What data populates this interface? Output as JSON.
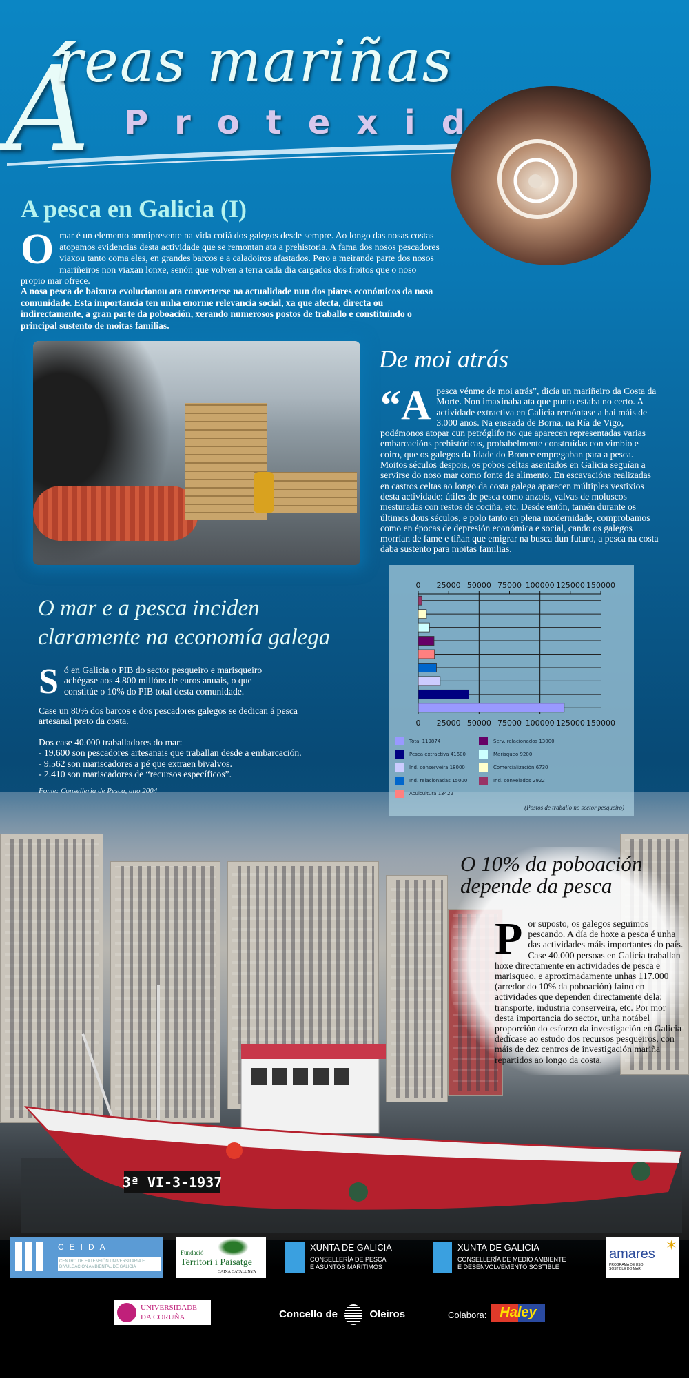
{
  "title": {
    "line1_initial": "Á",
    "line1_rest": "reas mariñas",
    "line2": "Protexidas"
  },
  "section1": {
    "heading": "A pesca en Galicia (I)",
    "drop": "O",
    "p1": "mar é un elemento omnipresente na vida cotiá dos galegos desde sempre. Ao longo das nosas costas atopamos evidencias desta actividade que se remontan ata a prehistoria. A fama dos nosos pescadores viaxou tanto coma eles, en grandes barcos e a caladoiros afastados. Pero a meirande parte dos nosos mariñeiros non viaxan lonxe, senón que volven a terra cada día cargados dos froitos que o noso propio mar ofrece.",
    "p2": "A nosa pesca de baixura evolucionou ata converterse na actualidade nun dos piares económicos da nosa comunidade. Esta importancia ten unha enorme relevancia social, xa que afecta, directa ou indirectamente, a gran parte da poboación, xerando numerosos postos de traballo e constituíndo o principal sustento de moitas familias."
  },
  "section2": {
    "heading": "De moi atrás",
    "drop": "“A",
    "text": "pesca vénme de moi atrás”, dicía un mariñeiro da Costa da Morte. Non imaxinaba ata que punto estaba no certo. A actividade extractiva en Galicia remóntase a hai máis de 3.000 anos. Na enseada de Borna, na Ría de Vigo, podémonos atopar cun petróglifo no que aparecen representadas varias embarcacións prehistóricas, probabelmente construídas con vimbio e coiro, que os galegos da Idade do Bronce empregaban para a pesca. Moitos séculos despois, os pobos celtas asentados en Galicia seguían a servirse do noso mar como fonte de alimento. En escavacións realizadas en castros celtas ao longo da costa galega aparecen múltiples vestixios desta actividade: útiles de pesca como anzois, valvas de moluscos mesturadas con restos de cociña, etc. Desde entón, tamén durante os últimos dous séculos, e polo tanto en plena modernidade, comprobamos como en épocas de depresión económica e social, cando os galegos morrían de fame e tiñan que emigrar na busca dun futuro, a pesca na costa daba sustento para moitas familias."
  },
  "section3": {
    "heading_line1": "O mar e a pesca inciden",
    "heading_line2": "claramente na economía galega",
    "drop": "S",
    "p1": "ó en Galicia o PIB do sector pesqueiro e marisqueiro achégase aos 4.800 millóns de euros anuais, o que constitúe o 10% do PIB total desta comunidade.",
    "p2": "Case un 80% dos barcos e dos pescadores galegos se dedican á pesca artesanal preto da costa.",
    "p3_lines": [
      "Dos case 40.000 traballadores do mar:",
      "- 19.600 son pescadores artesanais que traballan desde a embarcación.",
      "- 9.562 son mariscadores a pé que extraen bivalvos.",
      "- 2.410 son mariscadores de “recursos específicos”."
    ],
    "source": "Fonte: Conselleria de Pesca, ano 2004"
  },
  "chart_data": {
    "type": "bar",
    "orientation": "horizontal",
    "xlim": [
      0,
      150000
    ],
    "ticks": [
      "0",
      "25000",
      "50000",
      "75000",
      "100000",
      "125000",
      "150000"
    ],
    "grid": true,
    "categories": [
      "Total",
      "Pesca extractiva",
      "Ind. conserveira",
      "Ind. relacionadas",
      "Acuicultura",
      "Serv. relacionados",
      "Marisqueo",
      "Comercialización",
      "Ind. conxelados"
    ],
    "values": [
      119874,
      41600,
      18000,
      15000,
      13422,
      13000,
      9200,
      6730,
      2922
    ],
    "colors": [
      "#9999ff",
      "#000080",
      "#ccccff",
      "#0066cc",
      "#ff8080",
      "#660066",
      "#ccffff",
      "#ffffcc",
      "#993366"
    ],
    "legend": [
      "Total 119874",
      "Pesca extractiva  41600",
      "Ind. conserveira  18000",
      "Ind. relacionadas  15000",
      "Acuicultura  13422",
      "Serv. relacionados 13000",
      "Marisqueo  9200",
      "Comercialización  6730",
      "Ind. conxelados  2922"
    ],
    "note": "(Postos de traballo no sector pesqueiro)"
  },
  "section4": {
    "heading_line1": "O 10% da poboación",
    "heading_line2": "depende da pesca",
    "drop": "P",
    "text": "or suposto, os galegos seguimos pescando. A día de hoxe a pesca é unha das actividades máis importantes do país. Case 40.000 persoas en Galicia traballan hoxe directamente en actividades de pesca e marisqueo, e aproximadamente unhas 117.000 (arredor do 10% da poboación) faino en actividades que dependen directamente dela: transporte, industria conserveira, etc. Por mor desta importancia do sector, unha notábel proporción do esforzo da investigación en Galicia dedícase ao estudo dos recursos pesqueiros, con máis de dez centros de investigación mariña repartidos ao longo da costa."
  },
  "boat": {
    "registration": "3ª VI-3-1937"
  },
  "logos": {
    "ceida": {
      "name": "CEIDA",
      "sub": "CENTRO DE EXTENSIÓN UNIVERSITARIA E DIVULGACIÓN AMBIENTAL DE GALICIA"
    },
    "fundacio": {
      "l1": "Fundació",
      "l2": "Territori i Paisatge",
      "l3": "CAIXA CATALUNYA"
    },
    "xunta1": {
      "name": "XUNTA DE GALICIA",
      "l1": "CONSELLERÍA DE PESCA",
      "l2": "E ASUNTOS MARÍTIMOS"
    },
    "xunta2": {
      "name": "XUNTA DE GALICIA",
      "l1": "CONSELLERÍA DE MEDIO AMBIENTE",
      "l2": "E DESENVOLVEMENTO SOSTIBLE"
    },
    "amares": {
      "name": "amares",
      "sub": "PROGRAMA DE USO SOSTIBLE DO MAR"
    },
    "udc": {
      "l1": "UNIVERSIDADE",
      "l2": "DA CORUÑA"
    },
    "oleiros": {
      "l1": "Concello de",
      "l2": "Oleiros"
    },
    "colabora": "Colabora:",
    "haley": "Haley"
  },
  "colors": {
    "accent_text": "#b6f3ef",
    "title_purple": "#d7c8ec",
    "bg_blue": "#0a78b4"
  }
}
